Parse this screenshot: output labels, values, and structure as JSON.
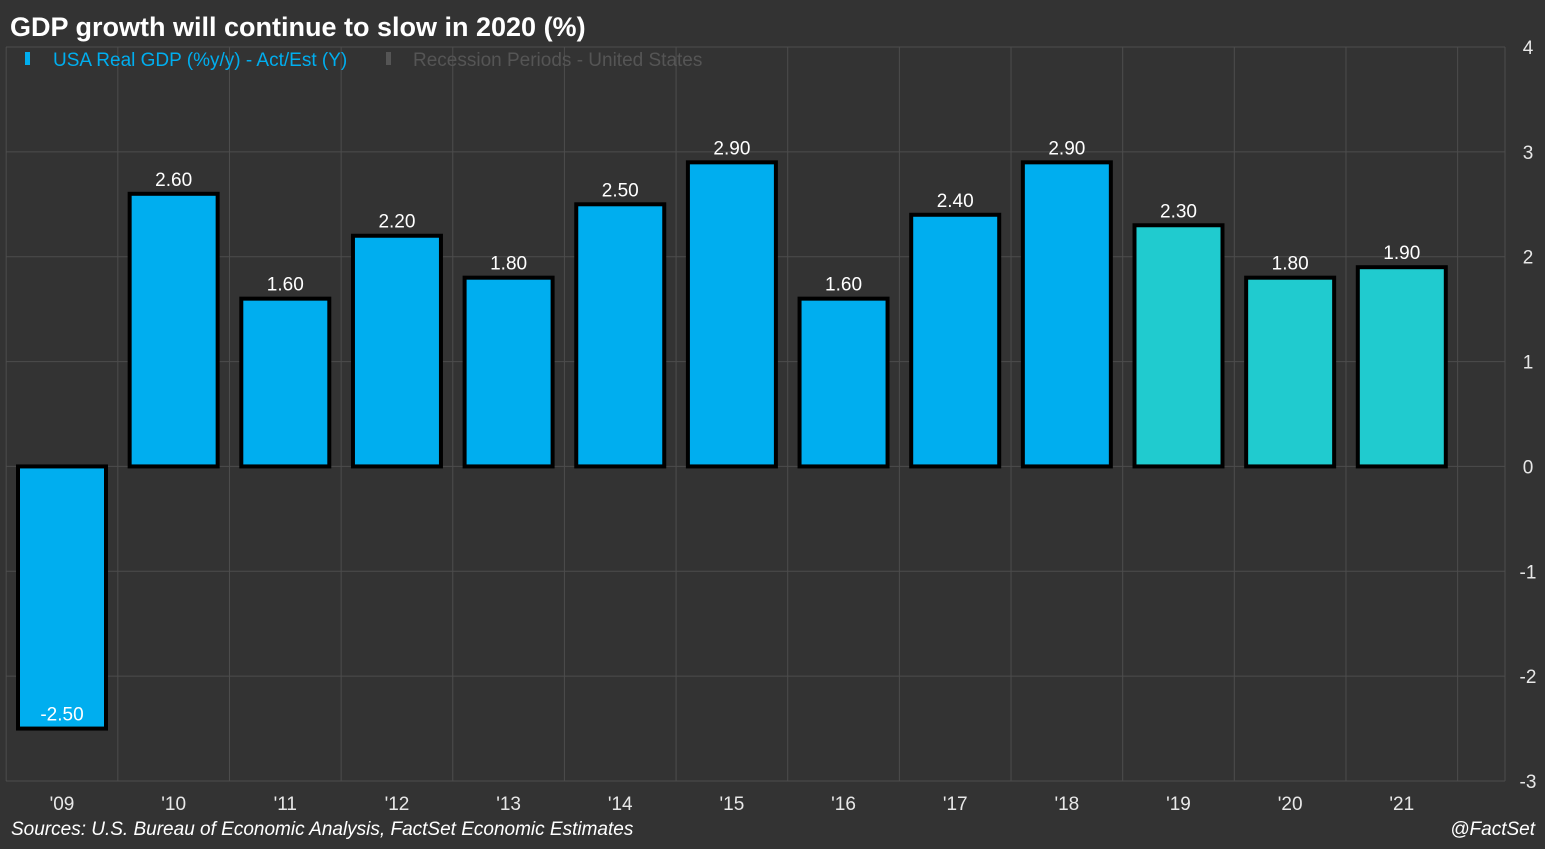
{
  "chart_data": {
    "type": "bar",
    "title": "GDP growth will continue to slow in 2020 (%)",
    "categories": [
      "'09",
      "'10",
      "'11",
      "'12",
      "'13",
      "'14",
      "'15",
      "'16",
      "'17",
      "'18",
      "'19",
      "'20",
      "'21"
    ],
    "series": [
      {
        "name": "USA Real GDP (%y/y) - Act/Est (Y)",
        "values": [
          -2.5,
          2.6,
          1.6,
          2.2,
          1.8,
          2.5,
          2.9,
          1.6,
          2.4,
          2.9,
          2.3,
          1.8,
          1.9
        ],
        "labels": [
          "-2.50",
          "2.60",
          "1.60",
          "2.20",
          "1.80",
          "2.50",
          "2.90",
          "1.60",
          "2.40",
          "2.90",
          "2.30",
          "1.80",
          "1.90"
        ],
        "estimated": [
          false,
          false,
          false,
          false,
          false,
          false,
          false,
          false,
          false,
          false,
          true,
          true,
          true
        ]
      }
    ],
    "legend": [
      {
        "label": "USA Real GDP (%y/y) - Act/Est (Y)",
        "color": "#00aeef"
      },
      {
        "label": "Recession Periods - United States",
        "color": "#555555"
      }
    ],
    "legend_position": "top-left",
    "ylim": [
      -3,
      4
    ],
    "yticks": [
      4,
      3,
      2,
      1,
      0,
      -1,
      -2,
      -3
    ],
    "y_axis_side": "right",
    "grid": true,
    "xlabel": "",
    "ylabel": "",
    "colors": {
      "actual": "#00aeef",
      "estimate": "#20cbcf",
      "outline": "#000000",
      "background": "#333333",
      "grid": "#4d4d4d",
      "legend_active": "#00aeef",
      "legend_inactive": "#555555"
    }
  },
  "footer": {
    "source": "Sources: U.S. Bureau of Economic Analysis, FactSet Economic Estimates",
    "credit": "@FactSet"
  }
}
